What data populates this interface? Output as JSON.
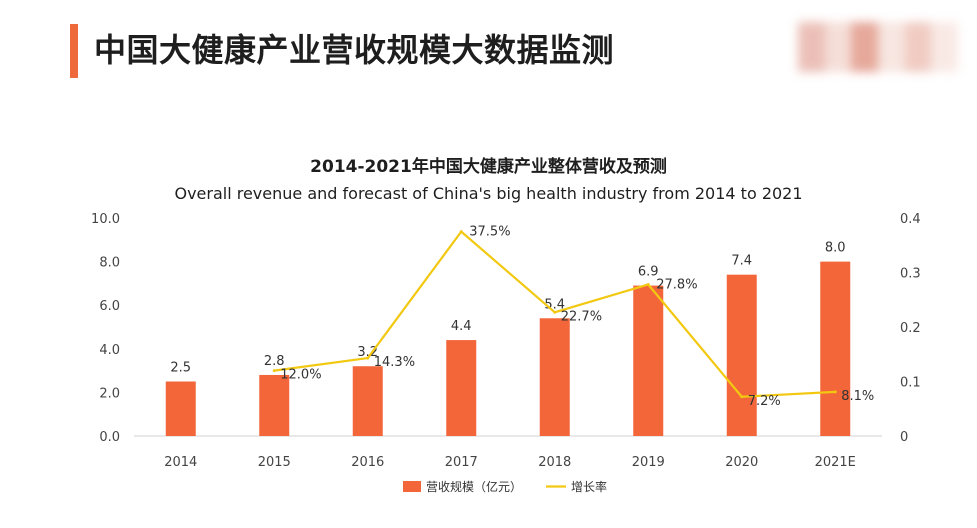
{
  "header": {
    "title": "中国大健康产业营收规模大数据监测"
  },
  "colors": {
    "accent": "#ee6a3b",
    "bar": "#f2663a",
    "line": "#f2c811",
    "axis_text": "#444444",
    "grid": "#e6e6e6"
  },
  "chart_data": {
    "type": "bar",
    "title": "2014-2021年中国大健康产业整体营收及预测",
    "subtitle": "Overall revenue and forecast of China's big health industry from 2014 to 2021",
    "categories": [
      "2014",
      "2015",
      "2016",
      "2017",
      "2018",
      "2019",
      "2020",
      "2021E"
    ],
    "series": [
      {
        "name": "营收规模（亿元）",
        "type": "bar",
        "axis": "left",
        "values": [
          2.5,
          2.8,
          3.2,
          4.4,
          5.4,
          6.9,
          7.4,
          8.0
        ],
        "labels": [
          "2.5",
          "2.8",
          "3.2",
          "4.4",
          "5.4",
          "6.9",
          "7.4",
          "8.0"
        ]
      },
      {
        "name": "增长率",
        "type": "line",
        "axis": "right",
        "values": [
          null,
          0.12,
          0.143,
          0.375,
          0.227,
          0.278,
          0.072,
          0.081
        ],
        "labels": [
          "",
          "12.0%",
          "14.3%",
          "37.5%",
          "22.7%",
          "27.8%",
          "7.2%",
          "8.1%"
        ]
      }
    ],
    "y_left": {
      "ylim": [
        0,
        10
      ],
      "ticks": [
        "0.0",
        "2.0",
        "4.0",
        "6.0",
        "8.0",
        "10.0"
      ]
    },
    "y_right": {
      "ylim": [
        0,
        0.4
      ],
      "ticks": [
        "0",
        "0.1",
        "0.2",
        "0.3",
        "0.4"
      ]
    },
    "grid": true,
    "legend_position": "bottom-center"
  }
}
